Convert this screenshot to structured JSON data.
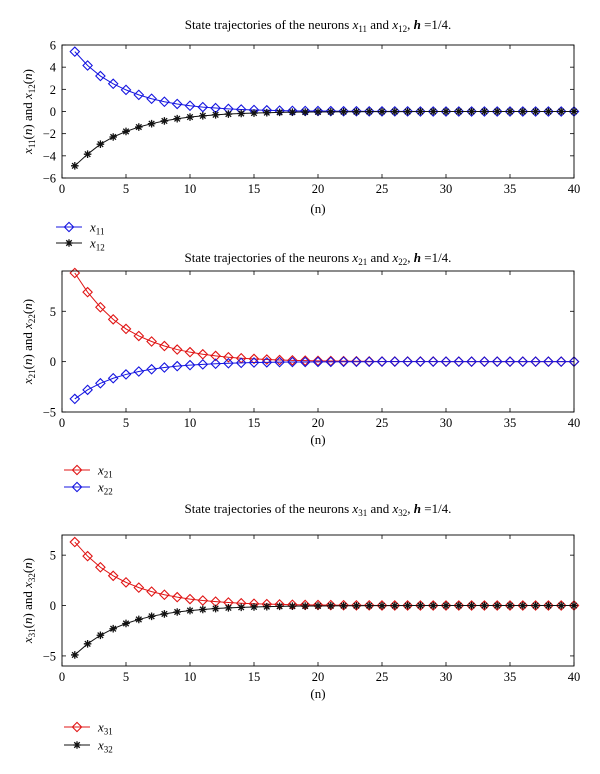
{
  "chart_data": [
    {
      "type": "line",
      "title": {
        "pre": "State trajectories of the neurons ",
        "a": "x",
        "a_sub": "11",
        "mid": " and ",
        "b": "x",
        "b_sub": "12",
        "post1": ", ",
        "h": "h",
        "post2": " =1/4."
      },
      "xlabel": "(n)",
      "ylabel": "x11(n) and x12(n)",
      "xlim": [
        0,
        40
      ],
      "ylim": [
        -6,
        6
      ],
      "xticks": [
        0,
        5,
        10,
        15,
        20,
        25,
        30,
        35,
        40
      ],
      "yticks": [
        -6,
        -4,
        -2,
        0,
        2,
        4,
        6
      ],
      "grid": false,
      "legend_position": "below-left",
      "x": [
        1,
        2,
        3,
        4,
        5,
        6,
        7,
        8,
        9,
        10,
        11,
        12,
        13,
        14,
        15,
        16,
        17,
        18,
        19,
        20,
        21,
        22,
        23,
        24,
        25,
        26,
        27,
        28,
        29,
        30,
        31,
        32,
        33,
        34,
        35,
        36,
        37,
        38,
        39,
        40
      ],
      "series": [
        {
          "name": "x11",
          "sub": "11",
          "color": "#1515e0",
          "marker": "diamond",
          "values": [
            5.4,
            4.15,
            3.2,
            2.5,
            1.95,
            1.5,
            1.15,
            0.88,
            0.68,
            0.52,
            0.4,
            0.31,
            0.24,
            0.18,
            0.14,
            0.11,
            0.08,
            0.06,
            0.05,
            0.04,
            0.03,
            0.02,
            0.02,
            0.01,
            0.01,
            0.01,
            0.01,
            0,
            0,
            0,
            0,
            0,
            0,
            0,
            0,
            0,
            0,
            0,
            0,
            0
          ]
        },
        {
          "name": "x12",
          "sub": "12",
          "color": "#111111",
          "marker": "star",
          "values": [
            -4.9,
            -3.85,
            -2.95,
            -2.3,
            -1.8,
            -1.4,
            -1.1,
            -0.85,
            -0.65,
            -0.5,
            -0.39,
            -0.3,
            -0.23,
            -0.18,
            -0.14,
            -0.11,
            -0.08,
            -0.06,
            -0.05,
            -0.04,
            -0.03,
            -0.02,
            -0.02,
            -0.01,
            -0.01,
            -0.01,
            -0.01,
            0,
            0,
            0,
            0,
            0,
            0,
            0,
            0,
            0,
            0,
            0,
            0,
            0
          ]
        }
      ]
    },
    {
      "type": "line",
      "title": {
        "pre": "State trajectories of the neurons ",
        "a": "x",
        "a_sub": "21",
        "mid": " and ",
        "b": "x",
        "b_sub": "22",
        "post1": ", ",
        "h": "h",
        "post2": " =1/4."
      },
      "xlabel": "(n)",
      "ylabel": "x21(n) and x22(n)",
      "xlim": [
        0,
        40
      ],
      "ylim": [
        -5,
        9
      ],
      "xticks": [
        0,
        5,
        10,
        15,
        20,
        25,
        30,
        35,
        40
      ],
      "yticks": [
        -5,
        0,
        5
      ],
      "grid": false,
      "legend_position": "below-left",
      "x": [
        1,
        2,
        3,
        4,
        5,
        6,
        7,
        8,
        9,
        10,
        11,
        12,
        13,
        14,
        15,
        16,
        17,
        18,
        19,
        20,
        21,
        22,
        23,
        24,
        25,
        26,
        27,
        28,
        29,
        30,
        31,
        32,
        33,
        34,
        35,
        36,
        37,
        38,
        39,
        40
      ],
      "series": [
        {
          "name": "x21",
          "sub": "21",
          "color": "#e01515",
          "marker": "diamond",
          "values": [
            8.8,
            6.9,
            5.4,
            4.2,
            3.25,
            2.55,
            2.0,
            1.55,
            1.2,
            0.94,
            0.73,
            0.57,
            0.44,
            0.34,
            0.27,
            0.21,
            0.16,
            0.13,
            0.1,
            0.08,
            0.06,
            0.05,
            0.04,
            0.03,
            0.02,
            0.02,
            0.01,
            0.01,
            0.01,
            0,
            0,
            0,
            0,
            0,
            0,
            0,
            0,
            0,
            0,
            0
          ]
        },
        {
          "name": "x22",
          "sub": "22",
          "color": "#1515e0",
          "marker": "diamond",
          "values": [
            -3.7,
            -2.8,
            -2.15,
            -1.65,
            -1.27,
            -0.98,
            -0.76,
            -0.58,
            -0.45,
            -0.35,
            -0.27,
            -0.21,
            -0.16,
            -0.12,
            -0.09,
            -0.07,
            -0.05,
            -0.04,
            -0.03,
            -0.02,
            -0.02,
            -0.01,
            -0.01,
            -0.01,
            0,
            0,
            0,
            0,
            0,
            0,
            0,
            0,
            0,
            0,
            0,
            0,
            0,
            0,
            0,
            0
          ]
        }
      ]
    },
    {
      "type": "line",
      "title": {
        "pre": "State trajectories of the neurons ",
        "a": "x",
        "a_sub": "31",
        "mid": " and ",
        "b": "x",
        "b_sub": "32",
        "post1": ", ",
        "h": "h",
        "post2": " =1/4."
      },
      "xlabel": "(n)",
      "ylabel": "x31(n) and x32(n)",
      "xlim": [
        0,
        40
      ],
      "ylim": [
        -6,
        7
      ],
      "xticks": [
        0,
        5,
        10,
        15,
        20,
        25,
        30,
        35,
        40
      ],
      "yticks": [
        -5,
        0,
        5
      ],
      "grid": false,
      "legend_position": "below-left",
      "x": [
        1,
        2,
        3,
        4,
        5,
        6,
        7,
        8,
        9,
        10,
        11,
        12,
        13,
        14,
        15,
        16,
        17,
        18,
        19,
        20,
        21,
        22,
        23,
        24,
        25,
        26,
        27,
        28,
        29,
        30,
        31,
        32,
        33,
        34,
        35,
        36,
        37,
        38,
        39,
        40
      ],
      "series": [
        {
          "name": "x31",
          "sub": "31",
          "color": "#e01515",
          "marker": "diamond",
          "values": [
            6.3,
            4.9,
            3.8,
            2.95,
            2.3,
            1.78,
            1.38,
            1.07,
            0.83,
            0.64,
            0.5,
            0.39,
            0.3,
            0.23,
            0.18,
            0.14,
            0.11,
            0.08,
            0.06,
            0.05,
            0.04,
            0.03,
            0.02,
            0.02,
            0.01,
            0.01,
            0.01,
            0,
            0,
            0,
            0,
            0,
            0,
            0,
            0,
            0,
            0,
            0,
            0,
            0
          ]
        },
        {
          "name": "x32",
          "sub": "32",
          "color": "#111111",
          "marker": "star",
          "values": [
            -4.9,
            -3.8,
            -2.95,
            -2.3,
            -1.78,
            -1.38,
            -1.07,
            -0.83,
            -0.64,
            -0.5,
            -0.39,
            -0.3,
            -0.23,
            -0.18,
            -0.14,
            -0.11,
            -0.08,
            -0.06,
            -0.05,
            -0.04,
            -0.03,
            -0.02,
            -0.02,
            -0.01,
            -0.01,
            -0.01,
            0,
            0,
            0,
            0,
            0,
            0,
            0,
            0,
            0,
            0,
            0,
            0,
            0,
            0
          ]
        }
      ]
    }
  ]
}
